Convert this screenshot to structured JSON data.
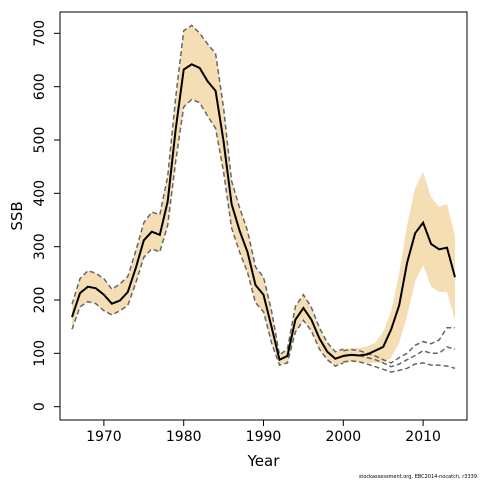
{
  "chart_data": {
    "type": "line",
    "xlabel": "Year",
    "ylabel": "SSB",
    "xlim": [
      1964.5,
      2015.5
    ],
    "ylim": [
      -25,
      740
    ],
    "x_ticks": [
      1970,
      1980,
      1990,
      2000,
      2010
    ],
    "y_ticks": [
      0,
      100,
      200,
      300,
      400,
      500,
      600,
      700
    ],
    "footnote": "stockassessment.org, EBC2014-nocatch, r3339",
    "colors": {
      "band": "#f5deb3",
      "estimate": "#000000",
      "dashed": "#666666"
    },
    "historical": {
      "x": [
        1966,
        1967,
        1968,
        1969,
        1970,
        1971,
        1972,
        1973,
        1974,
        1975,
        1976,
        1977,
        1978,
        1979,
        1980,
        1981,
        1982,
        1983,
        1984,
        1985,
        1986,
        1987,
        1988,
        1989,
        1990,
        1991,
        1992,
        1993,
        1994,
        1995,
        1996,
        1997,
        1998,
        1999,
        2000
      ],
      "estimate": [
        168,
        213,
        225,
        222,
        210,
        193,
        199,
        215,
        260,
        312,
        328,
        322,
        385,
        520,
        632,
        642,
        635,
        610,
        592,
        497,
        380,
        330,
        290,
        228,
        210,
        150,
        88,
        95,
        163,
        185,
        163,
        128,
        103,
        90,
        95
      ],
      "lower": [
        145,
        187,
        197,
        193,
        180,
        172,
        180,
        190,
        232,
        280,
        296,
        290,
        340,
        460,
        562,
        576,
        570,
        545,
        522,
        440,
        335,
        290,
        252,
        195,
        178,
        120,
        78,
        82,
        140,
        162,
        142,
        108,
        88,
        76,
        82
      ],
      "upper": [
        192,
        240,
        255,
        250,
        240,
        220,
        230,
        244,
        292,
        345,
        365,
        360,
        432,
        580,
        705,
        715,
        700,
        680,
        662,
        560,
        423,
        373,
        330,
        262,
        243,
        180,
        97,
        108,
        188,
        210,
        186,
        148,
        120,
        103,
        108
      ]
    },
    "projection": {
      "x": [
        2000,
        2001,
        2002,
        2003,
        2004,
        2005,
        2006,
        2007,
        2008,
        2009,
        2010,
        2011,
        2012,
        2013,
        2014
      ],
      "estimate": [
        95,
        97,
        96,
        98,
        105,
        112,
        145,
        190,
        270,
        325,
        345,
        305,
        295,
        298,
        243
      ],
      "band_lower": [
        82,
        84,
        83,
        82,
        82,
        82,
        92,
        120,
        170,
        235,
        265,
        225,
        215,
        215,
        162
      ],
      "band_upper": [
        108,
        110,
        110,
        113,
        120,
        140,
        180,
        250,
        340,
        410,
        440,
        393,
        375,
        380,
        320
      ],
      "dashed": [
        [
          105,
          107,
          105,
          100,
          95,
          88,
          82,
          92,
          100,
          115,
          122,
          118,
          125,
          148,
          148
        ],
        [
          96,
          98,
          96,
          92,
          88,
          82,
          75,
          80,
          88,
          96,
          105,
          100,
          100,
          112,
          108
        ],
        [
          84,
          86,
          84,
          80,
          75,
          70,
          65,
          68,
          72,
          80,
          82,
          78,
          78,
          76,
          72
        ]
      ]
    }
  }
}
